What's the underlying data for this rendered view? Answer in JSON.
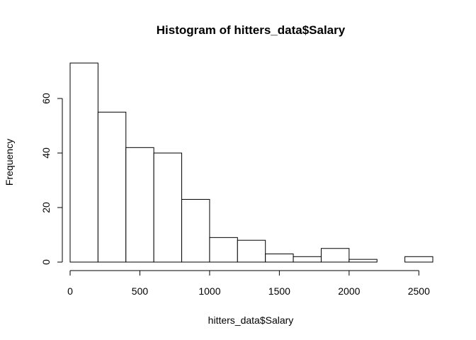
{
  "chart_data": {
    "type": "bar",
    "subtype": "histogram",
    "title": "Histogram of hitters_data$Salary",
    "xlabel": "hitters_data$Salary",
    "ylabel": "Frequency",
    "bin_width": 200,
    "bins": [
      {
        "start": 0,
        "end": 200,
        "count": 73
      },
      {
        "start": 200,
        "end": 400,
        "count": 55
      },
      {
        "start": 400,
        "end": 600,
        "count": 42
      },
      {
        "start": 600,
        "end": 800,
        "count": 40
      },
      {
        "start": 800,
        "end": 1000,
        "count": 23
      },
      {
        "start": 1000,
        "end": 1200,
        "count": 9
      },
      {
        "start": 1200,
        "end": 1400,
        "count": 8
      },
      {
        "start": 1400,
        "end": 1600,
        "count": 3
      },
      {
        "start": 1600,
        "end": 1800,
        "count": 2
      },
      {
        "start": 1800,
        "end": 2000,
        "count": 5
      },
      {
        "start": 2000,
        "end": 2200,
        "count": 1
      },
      {
        "start": 2200,
        "end": 2400,
        "count": 0
      },
      {
        "start": 2400,
        "end": 2600,
        "count": 2
      }
    ],
    "xlim": [
      0,
      2600
    ],
    "ylim": [
      0,
      73
    ],
    "x_ticks": [
      0,
      500,
      1000,
      1500,
      2000,
      2500
    ],
    "y_ticks": [
      0,
      20,
      40,
      60
    ],
    "grid": false,
    "legend": "none"
  }
}
